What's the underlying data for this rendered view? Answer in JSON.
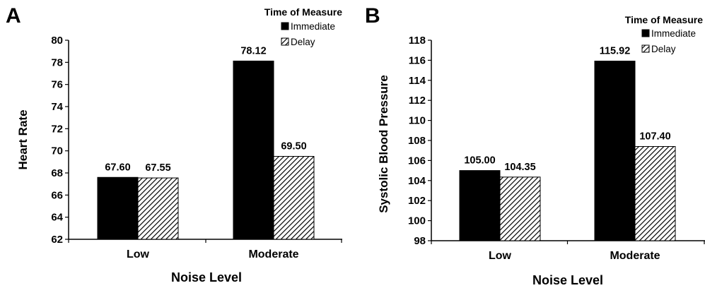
{
  "chart_data": [
    {
      "type": "bar",
      "panel": "A",
      "categories": [
        "Low",
        "Moderate"
      ],
      "series": [
        {
          "name": "Immediate",
          "values": [
            67.6,
            78.12
          ],
          "labels": [
            "67.60",
            "78.12"
          ]
        },
        {
          "name": "Delay",
          "values": [
            67.55,
            69.5
          ],
          "labels": [
            "67.55",
            "69.50"
          ]
        }
      ],
      "xlabel": "Noise Level",
      "ylabel": "Heart Rate",
      "ylim": [
        62,
        80
      ],
      "yticks": [
        "62",
        "64",
        "66",
        "68",
        "70",
        "72",
        "74",
        "76",
        "78",
        "80"
      ],
      "legend": {
        "title": "Time of Measure",
        "placement": "top-right"
      },
      "grid": false
    },
    {
      "type": "bar",
      "panel": "B",
      "categories": [
        "Low",
        "Moderate"
      ],
      "series": [
        {
          "name": "Immediate",
          "values": [
            105.0,
            115.92
          ],
          "labels": [
            "105.00",
            "115.92"
          ]
        },
        {
          "name": "Delay",
          "values": [
            104.35,
            107.4
          ],
          "labels": [
            "104.35",
            "107.40"
          ]
        }
      ],
      "xlabel": "Noise Level",
      "ylabel": "Systolic Blood Pressure",
      "ylim": [
        98,
        118
      ],
      "yticks": [
        "98",
        "100",
        "102",
        "104",
        "106",
        "108",
        "110",
        "112",
        "114",
        "116",
        "118"
      ],
      "legend": {
        "title": "Time of Measure",
        "placement": "top-right"
      },
      "grid": false
    }
  ],
  "colors": {
    "immediate": "#000000",
    "delay_pattern": "diagonal-hatch",
    "axis": "#000000"
  }
}
